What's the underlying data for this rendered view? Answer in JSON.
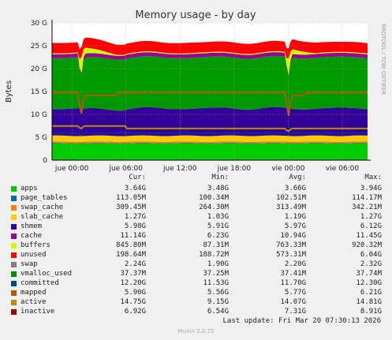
{
  "side_text": "RRDTOOL / TOBI OETIKER",
  "chart_data": {
    "type": "area",
    "title": "Memory usage - by day",
    "ylabel": "Bytes",
    "xlabel": "",
    "ylim": [
      0,
      30
    ],
    "y_unit": "G",
    "yticks": [
      "0",
      "5 G",
      "10 G",
      "15 G",
      "20 G",
      "25 G",
      "30 G"
    ],
    "xticks": [
      "jue 00:00",
      "jue 06:00",
      "jue 12:00",
      "jue 18:00",
      "vie 00:00",
      "vie 06:00"
    ],
    "xtick_hours": [
      0,
      6,
      12,
      18,
      24,
      30
    ],
    "x_range_hours": [
      -2.2,
      32.8
    ],
    "stacked_series": [
      {
        "name": "apps",
        "color": "#00cc00",
        "value": 3.64
      },
      {
        "name": "page_tables",
        "color": "#0066b3",
        "value": 0.113
      },
      {
        "name": "swap_cache",
        "color": "#ff8000",
        "value": 0.309
      },
      {
        "name": "slab_cache",
        "color": "#ffcc00",
        "value": 1.27
      },
      {
        "name": "shmem",
        "color": "#330099",
        "value": 5.98
      },
      {
        "name": "cache",
        "color": "#009900",
        "value": 11.14
      },
      {
        "name": "buffers",
        "color": "#990099",
        "value": 0.846
      },
      {
        "name": "unused",
        "color": "#ccff00",
        "value": 0.199
      },
      {
        "name": "swap",
        "color": "#ff0000",
        "value": 2.24
      }
    ],
    "line_series": [
      {
        "name": "vmalloc_used",
        "color": "#808080",
        "value": 0.037
      },
      {
        "name": "committed",
        "color": "#008f00",
        "value": 12.2
      },
      {
        "name": "mapped",
        "color": "#00487d",
        "value": 5.9
      },
      {
        "name": "active",
        "color": "#b35a00",
        "value": 14.75
      },
      {
        "name": "inactive",
        "color": "#b38f00",
        "value": 6.92
      }
    ],
    "notes": "Memory dips at ~jue 01:00 and ~vie 00:00; shmem and unused vary over the day."
  },
  "legend": {
    "headers": [
      "Cur:",
      "Min:",
      "Avg:",
      "Max:"
    ],
    "rows": [
      {
        "name": "apps",
        "color": "#00cc00",
        "cur": "3.64G",
        "min": "3.48G",
        "avg": "3.66G",
        "max": "3.94G"
      },
      {
        "name": "page_tables",
        "color": "#0066b3",
        "cur": "113.05M",
        "min": "100.34M",
        "avg": "102.51M",
        "max": "114.17M"
      },
      {
        "name": "swap_cache",
        "color": "#ff8000",
        "cur": "309.45M",
        "min": "264.30M",
        "avg": "313.49M",
        "max": "342.21M"
      },
      {
        "name": "slab_cache",
        "color": "#ffcc00",
        "cur": "1.27G",
        "min": "1.03G",
        "avg": "1.19G",
        "max": "1.27G"
      },
      {
        "name": "shmem",
        "color": "#330099",
        "cur": "5.98G",
        "min": "5.91G",
        "avg": "5.97G",
        "max": "6.12G"
      },
      {
        "name": "cache",
        "color": "#990099",
        "cur": "11.14G",
        "min": "6.23G",
        "avg": "10.94G",
        "max": "11.45G"
      },
      {
        "name": "buffers",
        "color": "#ccff00",
        "cur": "845.80M",
        "min": "87.31M",
        "avg": "763.33M",
        "max": "920.32M"
      },
      {
        "name": "unused",
        "color": "#ff0000",
        "cur": "198.64M",
        "min": "188.72M",
        "avg": "573.31M",
        "max": "6.04G"
      },
      {
        "name": "swap",
        "color": "#808080",
        "cur": "2.24G",
        "min": "1.90G",
        "avg": "2.20G",
        "max": "2.32G"
      },
      {
        "name": "vmalloc_used",
        "color": "#008f00",
        "cur": "37.37M",
        "min": "37.25M",
        "avg": "37.41M",
        "max": "37.74M"
      },
      {
        "name": "committed",
        "color": "#00487d",
        "cur": "12.20G",
        "min": "11.53G",
        "avg": "11.70G",
        "max": "12.30G"
      },
      {
        "name": "mapped",
        "color": "#b35a00",
        "cur": "5.90G",
        "min": "5.56G",
        "avg": "5.77G",
        "max": "6.21G"
      },
      {
        "name": "active",
        "color": "#b38f00",
        "cur": "14.75G",
        "min": "9.15G",
        "avg": "14.07G",
        "max": "14.81G"
      },
      {
        "name": "inactive",
        "color": "#990000",
        "cur": "6.92G",
        "min": "6.54G",
        "avg": "7.31G",
        "max": "8.91G"
      }
    ],
    "last_update": "Last update: Fri Mar 20 07:30:13 2026",
    "footer": "Munin 2.0.75"
  }
}
